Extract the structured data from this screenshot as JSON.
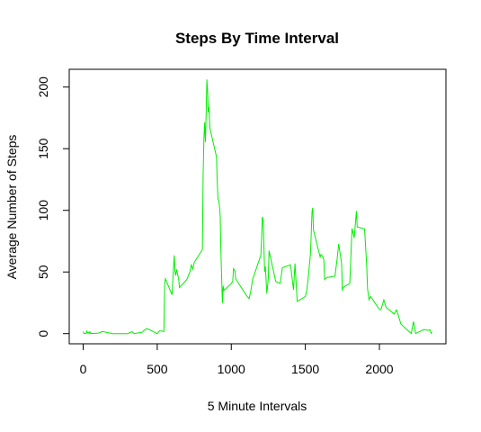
{
  "chart_data": {
    "type": "line",
    "title": "Steps By Time Interval",
    "xlabel": "5 Minute Intervals",
    "ylabel": "Average Number of Steps",
    "x": [
      0,
      5,
      10,
      15,
      20,
      25,
      30,
      35,
      40,
      45,
      50,
      55,
      100,
      130,
      200,
      230,
      300,
      330,
      345,
      400,
      410,
      430,
      440,
      450,
      500,
      515,
      530,
      545,
      550,
      555,
      600,
      610,
      615,
      620,
      625,
      630,
      645,
      650,
      700,
      720,
      730,
      740,
      750,
      805,
      810,
      815,
      820,
      825,
      830,
      835,
      840,
      845,
      850,
      855,
      900,
      905,
      910,
      915,
      920,
      925,
      930,
      940,
      945,
      950,
      1000,
      1010,
      1015,
      1025,
      1030,
      1100,
      1120,
      1130,
      1145,
      1150,
      1200,
      1210,
      1215,
      1225,
      1230,
      1240,
      1250,
      1255,
      1300,
      1330,
      1345,
      1400,
      1420,
      1430,
      1445,
      1500,
      1510,
      1520,
      1535,
      1545,
      1550,
      1555,
      1600,
      1605,
      1615,
      1625,
      1630,
      1645,
      1700,
      1715,
      1725,
      1730,
      1745,
      1750,
      1755,
      1800,
      1815,
      1830,
      1845,
      1850,
      1900,
      1915,
      1920,
      1930,
      1940,
      2000,
      2010,
      2030,
      2045,
      2100,
      2115,
      2130,
      2145,
      2200,
      2215,
      2230,
      2245,
      2300,
      2330,
      2340,
      2350,
      2355
    ],
    "series": [
      {
        "name": "steps",
        "color": "#00ee00",
        "values": [
          1.7,
          0.3,
          0.1,
          0.2,
          0.1,
          2.1,
          0.5,
          0.9,
          0,
          1.5,
          0.3,
          0.1,
          0.3,
          1.8,
          0,
          0,
          0,
          1.6,
          0,
          1.2,
          2.6,
          4.1,
          3.5,
          3.1,
          0,
          2.2,
          2.1,
          1.7,
          39.5,
          44.5,
          31.5,
          53.8,
          63.5,
          50.0,
          47.1,
          52.2,
          44.2,
          37.4,
          44.0,
          49.9,
          55.7,
          52.3,
          57.8,
          68.2,
          129.4,
          157.5,
          171.2,
          155.4,
          177.3,
          206.2,
          195.9,
          179.6,
          183.4,
          167.0,
          143.5,
          124.0,
          109.1,
          108.1,
          103.7,
          95.9,
          66.2,
          24.8,
          38.8,
          35.0,
          40.6,
          42.4,
          52.7,
          50.8,
          44.3,
          31.4,
          28.4,
          33.3,
          44.6,
          46.0,
          63.9,
          94.8,
          92.8,
          50.2,
          54.5,
          32.4,
          45.0,
          67.3,
          42.3,
          40.7,
          53.5,
          55.8,
          35.5,
          56.9,
          26.1,
          30.0,
          35.5,
          46.0,
          65.3,
          98.7,
          102.1,
          84.0,
          62.1,
          64.1,
          63.2,
          59.8,
          43.9,
          45.5,
          46.6,
          61.2,
          72.7,
          68.9,
          56.5,
          34.8,
          37.5,
          40.7,
          85.3,
          77.7,
          99.5,
          86.6,
          84.9,
          53.4,
          36.3,
          27.4,
          30.2,
          19.6,
          19.3,
          27.3,
          21.3,
          15.9,
          19.2,
          14.0,
          7.8,
          1.6,
          0.2,
          9.8,
          0.1,
          3.3,
          2.6,
          3.3,
          0.2,
          1.1
        ]
      }
    ],
    "xlim": [
      -94.2,
      2449.2
    ],
    "ylim": [
      -8.25,
      214.4
    ],
    "xticks": [
      0,
      500,
      1000,
      1500,
      2000
    ],
    "yticks": [
      0,
      50,
      100,
      150,
      200
    ]
  }
}
